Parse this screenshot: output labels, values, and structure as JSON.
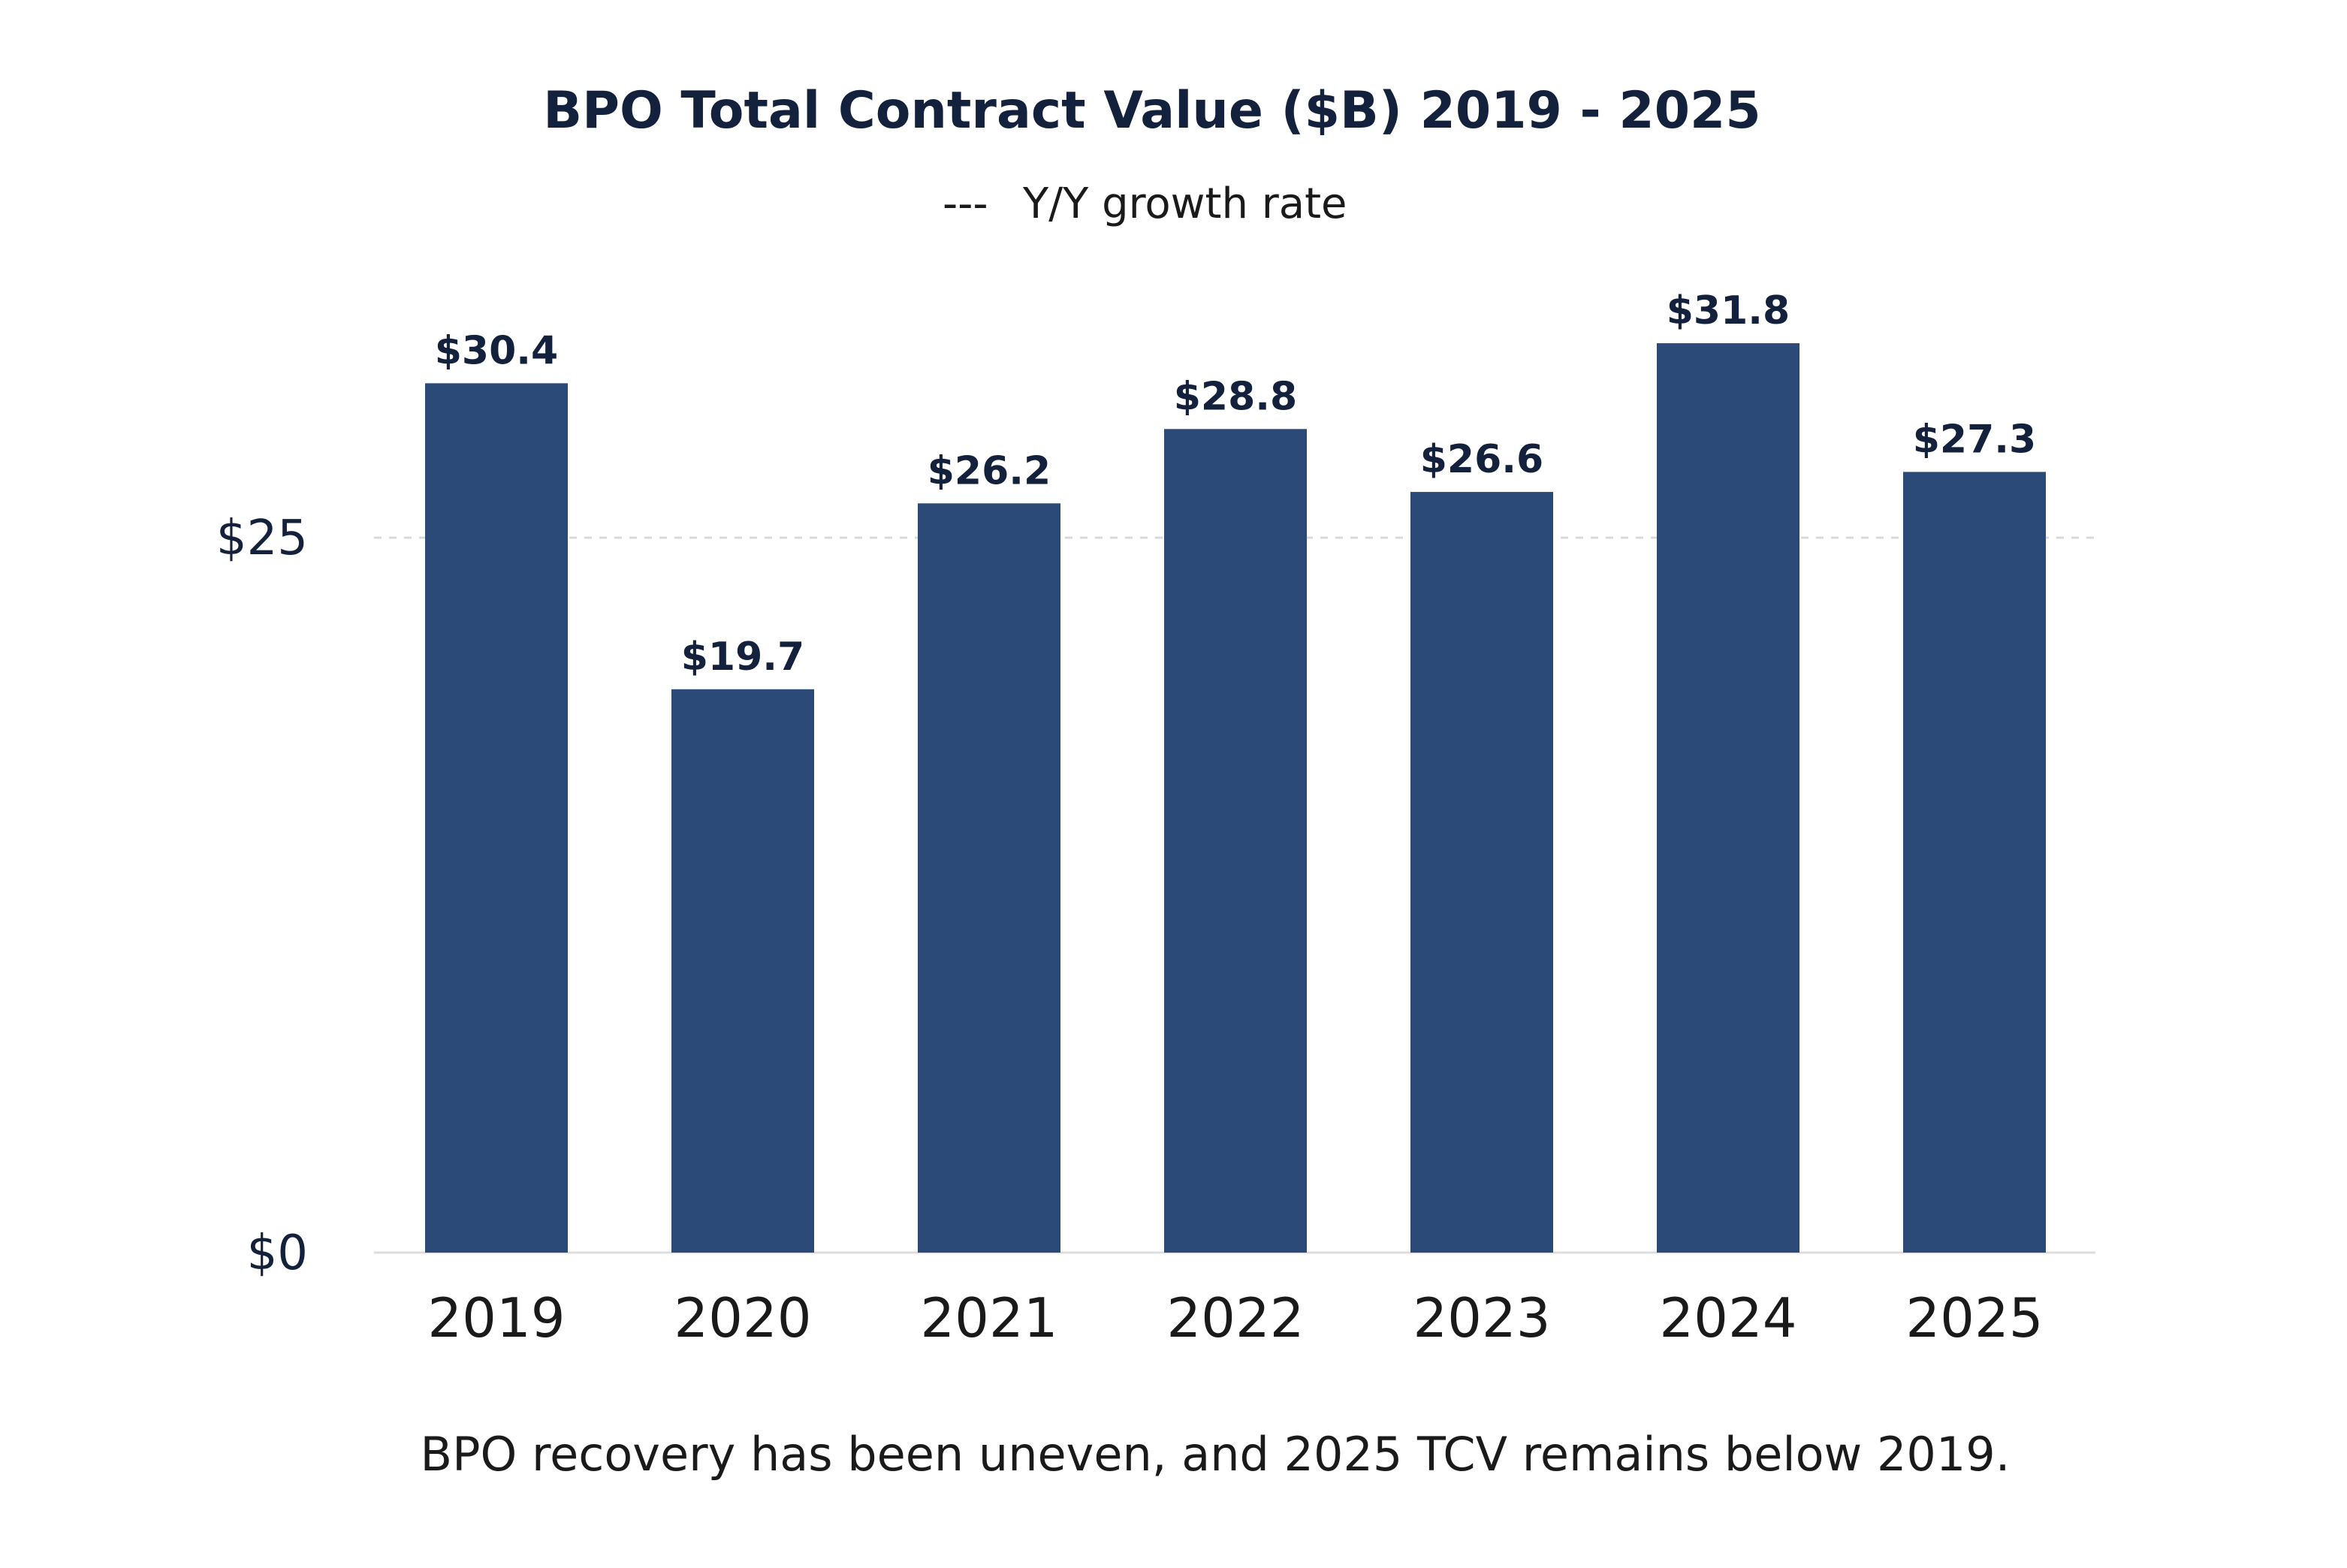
{
  "chart_data": {
    "type": "bar",
    "title": "BPO Total Contract Value ($B) 2019 - 2025",
    "legend": {
      "marker": "---",
      "label": "Y/Y growth rate"
    },
    "categories": [
      "2019",
      "2020",
      "2021",
      "2022",
      "2023",
      "2024",
      "2025"
    ],
    "values": [
      30.4,
      19.7,
      26.2,
      28.8,
      26.6,
      31.8,
      27.3
    ],
    "data_labels": [
      "$30.4",
      "$19.7",
      "$26.2",
      "$28.8",
      "$26.6",
      "$31.8",
      "$27.3"
    ],
    "y_ticks": [
      {
        "value": 0,
        "label": "$0"
      },
      {
        "value": 25,
        "label": "$25"
      }
    ],
    "ylim": [
      0,
      25
    ],
    "grid": "dashed horizontal line at $25",
    "xlabel": "",
    "ylabel": ""
  },
  "caption": "BPO recovery has been uneven, and 2025 TCV remains below 2019.",
  "colors": {
    "bar": "#2B4A78",
    "text_dark": "#14213D",
    "text_body": "#1A1A1A",
    "gridline": "#D9D9D9",
    "axis_line": "#DDDDDD"
  }
}
